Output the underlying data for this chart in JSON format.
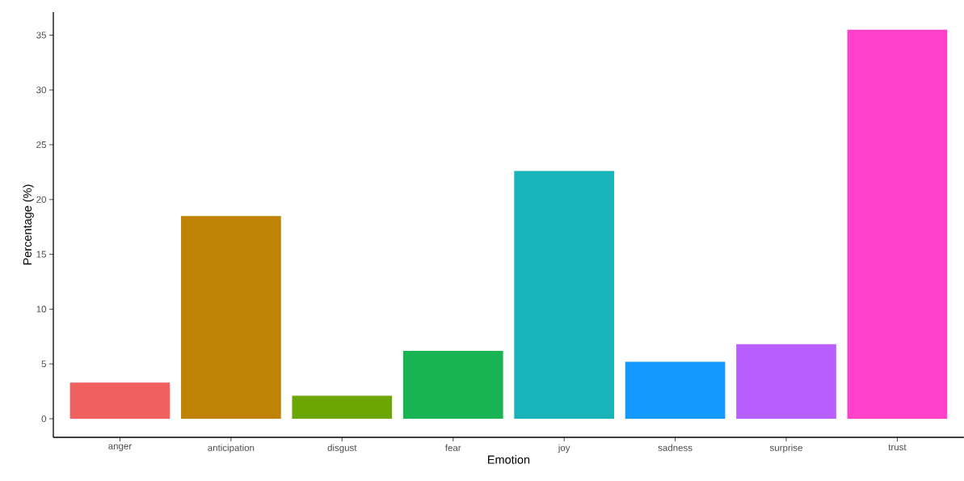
{
  "chart_data": {
    "type": "bar",
    "xlabel": "Emotion",
    "ylabel": "Percentage (%)",
    "categories": [
      "anger",
      "anticipation",
      "disgust",
      "fear",
      "joy",
      "sadness",
      "surprise",
      "trust"
    ],
    "values": [
      3.3,
      18.5,
      2.1,
      6.2,
      22.6,
      5.2,
      6.8,
      35.5
    ],
    "colors": [
      "#f0605f",
      "#c08204",
      "#6ba604",
      "#18b454",
      "#19b4ba",
      "#149aff",
      "#b860ff",
      "#ff40c8"
    ],
    "ylim": [
      -1.7,
      37.1
    ],
    "yticks": [
      0,
      5,
      10,
      15,
      20,
      25,
      30,
      35
    ]
  }
}
